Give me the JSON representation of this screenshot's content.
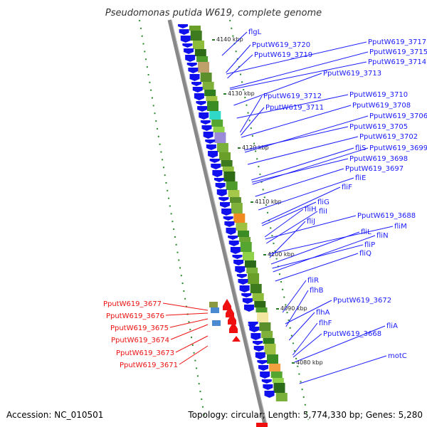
{
  "title": "Pseudomonas putida W619, complete genome",
  "footer": {
    "accession": "Accession: NC_010501",
    "topology": "Topology: circular; Length: 5,774,330 bp; Genes: 5,280"
  },
  "colors": {
    "forward_label": "#1a1aff",
    "reverse_label": "#ee1111",
    "forward_gene": "#1010ee",
    "reverse_gene": "#ee1010",
    "backbone": "#888888",
    "tick": "#2a7a2a"
  },
  "scale_labels": [
    "4140 kbp",
    "4130 kbp",
    "4120 kbp",
    "4110 kbp",
    "4100 kbp",
    "4090 kbp",
    "4080 kbp"
  ],
  "forward_labels": [
    "flgL",
    "PputW619_3720",
    "PputW619_3717",
    "PputW619_3715",
    "PputW619_3719",
    "PputW619_3714",
    "PputW619_3713",
    "PputW619_3712",
    "PputW619_3710",
    "PputW619_3711",
    "PputW619_3708",
    "PputW619_3706",
    "PputW619_3705",
    "PputW619_3702",
    "fliS",
    "PputW619_3699",
    "PputW619_3698",
    "PputW619_3697",
    "fliE",
    "fliF",
    "fliG",
    "fliH",
    "fliI",
    "fliJ",
    "PputW619_3688",
    "fliM",
    "fliL",
    "fliN",
    "fliP",
    "fliQ",
    "fliR",
    "flhB",
    "PputW619_3672",
    "flhA",
    "flhF",
    "fliA",
    "PputW619_3668",
    "motC"
  ],
  "reverse_labels": [
    "PputW619_3677",
    "PputW619_3676",
    "PputW619_3675",
    "PputW619_3674",
    "PputW619_3673",
    "PputW619_3671"
  ]
}
